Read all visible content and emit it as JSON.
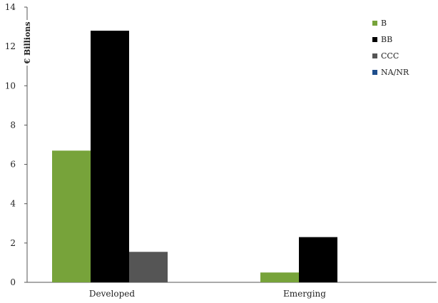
{
  "chart_data": {
    "type": "bar",
    "ylabel": "€ Billions",
    "xlabel": "",
    "ylim": [
      0,
      14
    ],
    "yticks": [
      0,
      2,
      4,
      6,
      8,
      10,
      12,
      14
    ],
    "categories": [
      "Developed",
      "Emerging"
    ],
    "series": [
      {
        "name": "B",
        "color": "#77a33a",
        "values": [
          6.7,
          0.5
        ]
      },
      {
        "name": "BB",
        "color": "#000000",
        "values": [
          12.8,
          2.3
        ]
      },
      {
        "name": "CCC",
        "color": "#555555",
        "values": [
          1.55,
          0
        ]
      },
      {
        "name": "NA/NR",
        "color": "#1f4e8c",
        "values": [
          0,
          0
        ]
      }
    ],
    "legend_position": "top-right",
    "grid": false
  }
}
